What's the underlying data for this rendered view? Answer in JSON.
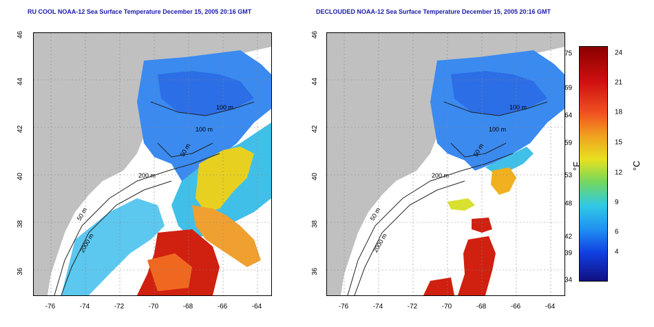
{
  "titles": {
    "left": "RU COOL NOAA-12 Sea Surface Temperature December 15, 2005 20:16 GMT",
    "right": "DECLOUDED NOAA-12 Sea Surface Temperature December 15, 2005 20:16 GMT"
  },
  "axes": {
    "lat_ticks": [
      "46",
      "44",
      "42",
      "40",
      "38",
      "36"
    ],
    "lon_ticks": [
      "-76",
      "-74",
      "-72",
      "-70",
      "-68",
      "-66",
      "-64"
    ]
  },
  "isobaths": {
    "left": [
      "100 m",
      "100 m",
      "50 m",
      "200 m",
      "50 m",
      "2000 m"
    ],
    "right": [
      "100 m",
      "100 m",
      "50 m",
      "200 m",
      "50 m",
      "2000 m"
    ]
  },
  "colorbar": {
    "fahrenheit_ticks": [
      "75",
      "69",
      "64",
      "59",
      "53",
      "48",
      "42",
      "39",
      "34"
    ],
    "celsius_ticks": [
      "24",
      "21",
      "18",
      "15",
      "12",
      "9",
      "6",
      "4"
    ],
    "fahrenheit_unit": "°F",
    "celsius_unit": "°C"
  },
  "colors": {
    "land": "#c0c0c0",
    "title": "#1a1aa8",
    "cold": "#1e5fe0",
    "mid": "#3cb4f0",
    "warm": "#e8d020",
    "hot": "#d02010"
  }
}
